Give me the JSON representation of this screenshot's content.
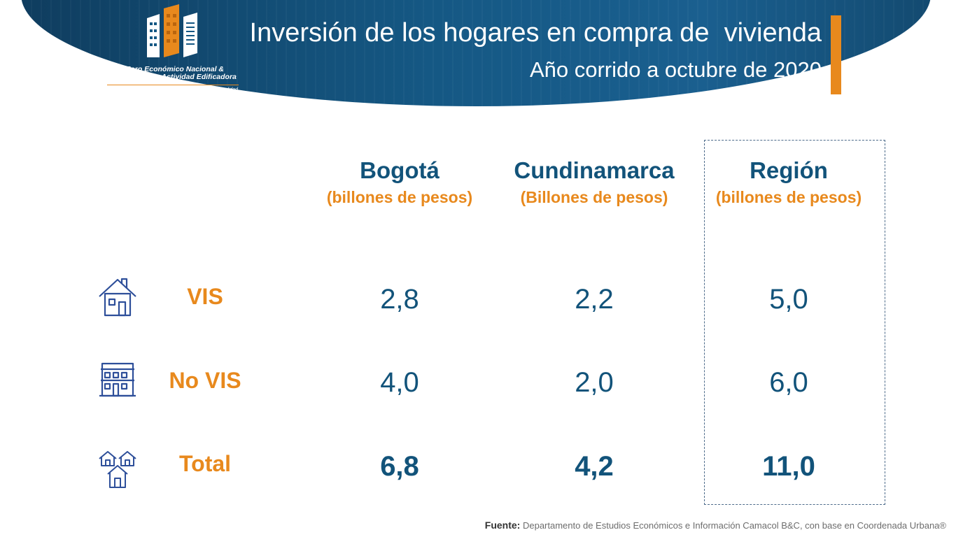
{
  "header": {
    "logo_line1": "Foro Económico Nacional &",
    "logo_line2": "Seminario de Actividad Edificadora",
    "logo_tagline": "El mercado edificador y el desafío de la nueva normalidad",
    "title": "Inversión de los hogares en compra de  vivienda",
    "subtitle": "Año corrido a octubre de 2020"
  },
  "table": {
    "columns": [
      {
        "name": "Bogotá",
        "unit": "(billones de pesos)"
      },
      {
        "name": "Cundinamarca",
        "unit": "(Billones de pesos)"
      },
      {
        "name": "Región",
        "unit": "(billones de pesos)"
      }
    ],
    "rows": [
      {
        "label": "VIS",
        "icon": "house-icon",
        "values": [
          "2,8",
          "2,2",
          "5,0"
        ]
      },
      {
        "label": "No VIS",
        "icon": "apartment-building-icon",
        "values": [
          "4,0",
          "2,0",
          "6,0"
        ]
      },
      {
        "label": "Total",
        "icon": "houses-group-icon",
        "values": [
          "6,8",
          "4,2",
          "11,0"
        ]
      }
    ]
  },
  "footer": {
    "label": "Fuente:",
    "text": " Departamento de Estudios Económicos e Información Camacol B&C, con base en Coordenada Urbana®"
  },
  "colors": {
    "navy": "#12537a",
    "orange": "#e8891d",
    "banner": "#155884"
  }
}
